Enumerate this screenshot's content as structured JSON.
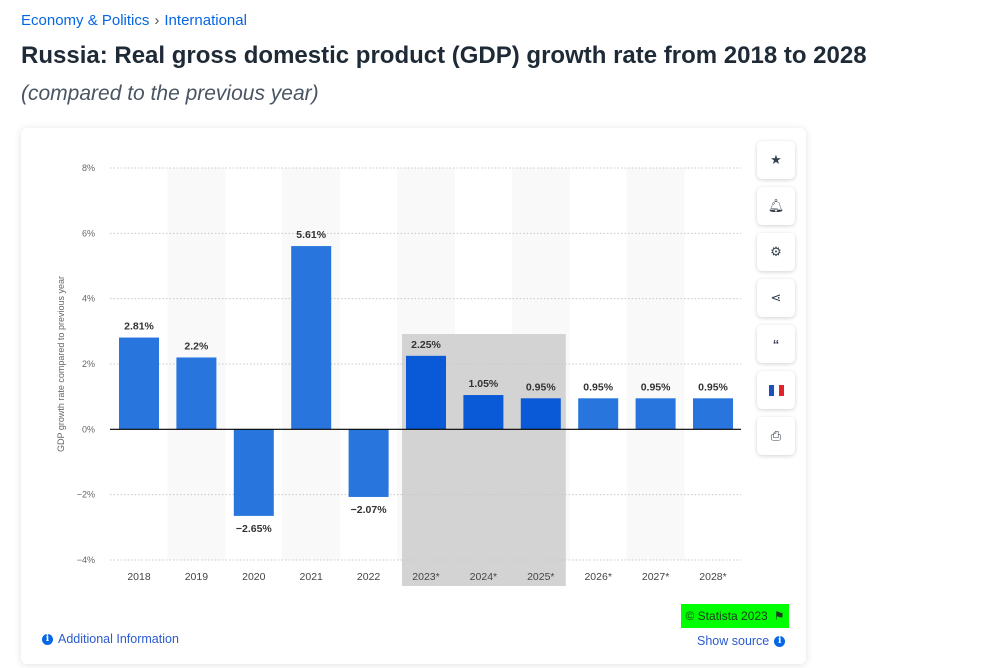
{
  "breadcrumb": [
    "Economy & Politics",
    "International"
  ],
  "breadcrumb_sep": "›",
  "title": "Russia: Real gross domestic product (GDP) growth rate from 2018 to 2028",
  "subtitle": "(compared to the previous year)",
  "sidebar_icons": [
    "star-icon",
    "bell-icon",
    "gear-icon",
    "share-icon",
    "quote-icon",
    "flag-fr-icon",
    "print-icon"
  ],
  "copyright": "© Statista 2023",
  "additional_info": "Additional Information",
  "show_source": "Show source",
  "colors": {
    "bar": "#2876dd",
    "forecast_bar": "#0a59d6",
    "highlight": "#d3d3d3",
    "copyright_bg": "#00ff00"
  },
  "chart_data": {
    "type": "bar",
    "categories": [
      "2018",
      "2019",
      "2020",
      "2021",
      "2022",
      "2023*",
      "2024*",
      "2025*",
      "2026*",
      "2027*",
      "2028*"
    ],
    "values": [
      2.81,
      2.2,
      -2.65,
      5.61,
      -2.07,
      2.25,
      1.05,
      0.95,
      0.95,
      0.95,
      0.95
    ],
    "labels": [
      "2.81%",
      "2.2%",
      "−2.65%",
      "5.61%",
      "−2.07%",
      "2.25%",
      "1.05%",
      "0.95%",
      "0.95%",
      "0.95%",
      "0.95%"
    ],
    "highlighted": [
      "2023*",
      "2024*",
      "2025*"
    ],
    "ylabel": "GDP growth rate compared to previous year",
    "ylim": [
      -4,
      8
    ],
    "yticks": [
      -4,
      -2,
      0,
      2,
      4,
      6,
      8
    ],
    "ytick_labels": [
      "−4%",
      "−2%",
      "0%",
      "2%",
      "4%",
      "6%",
      "8%"
    ],
    "grid": true
  }
}
